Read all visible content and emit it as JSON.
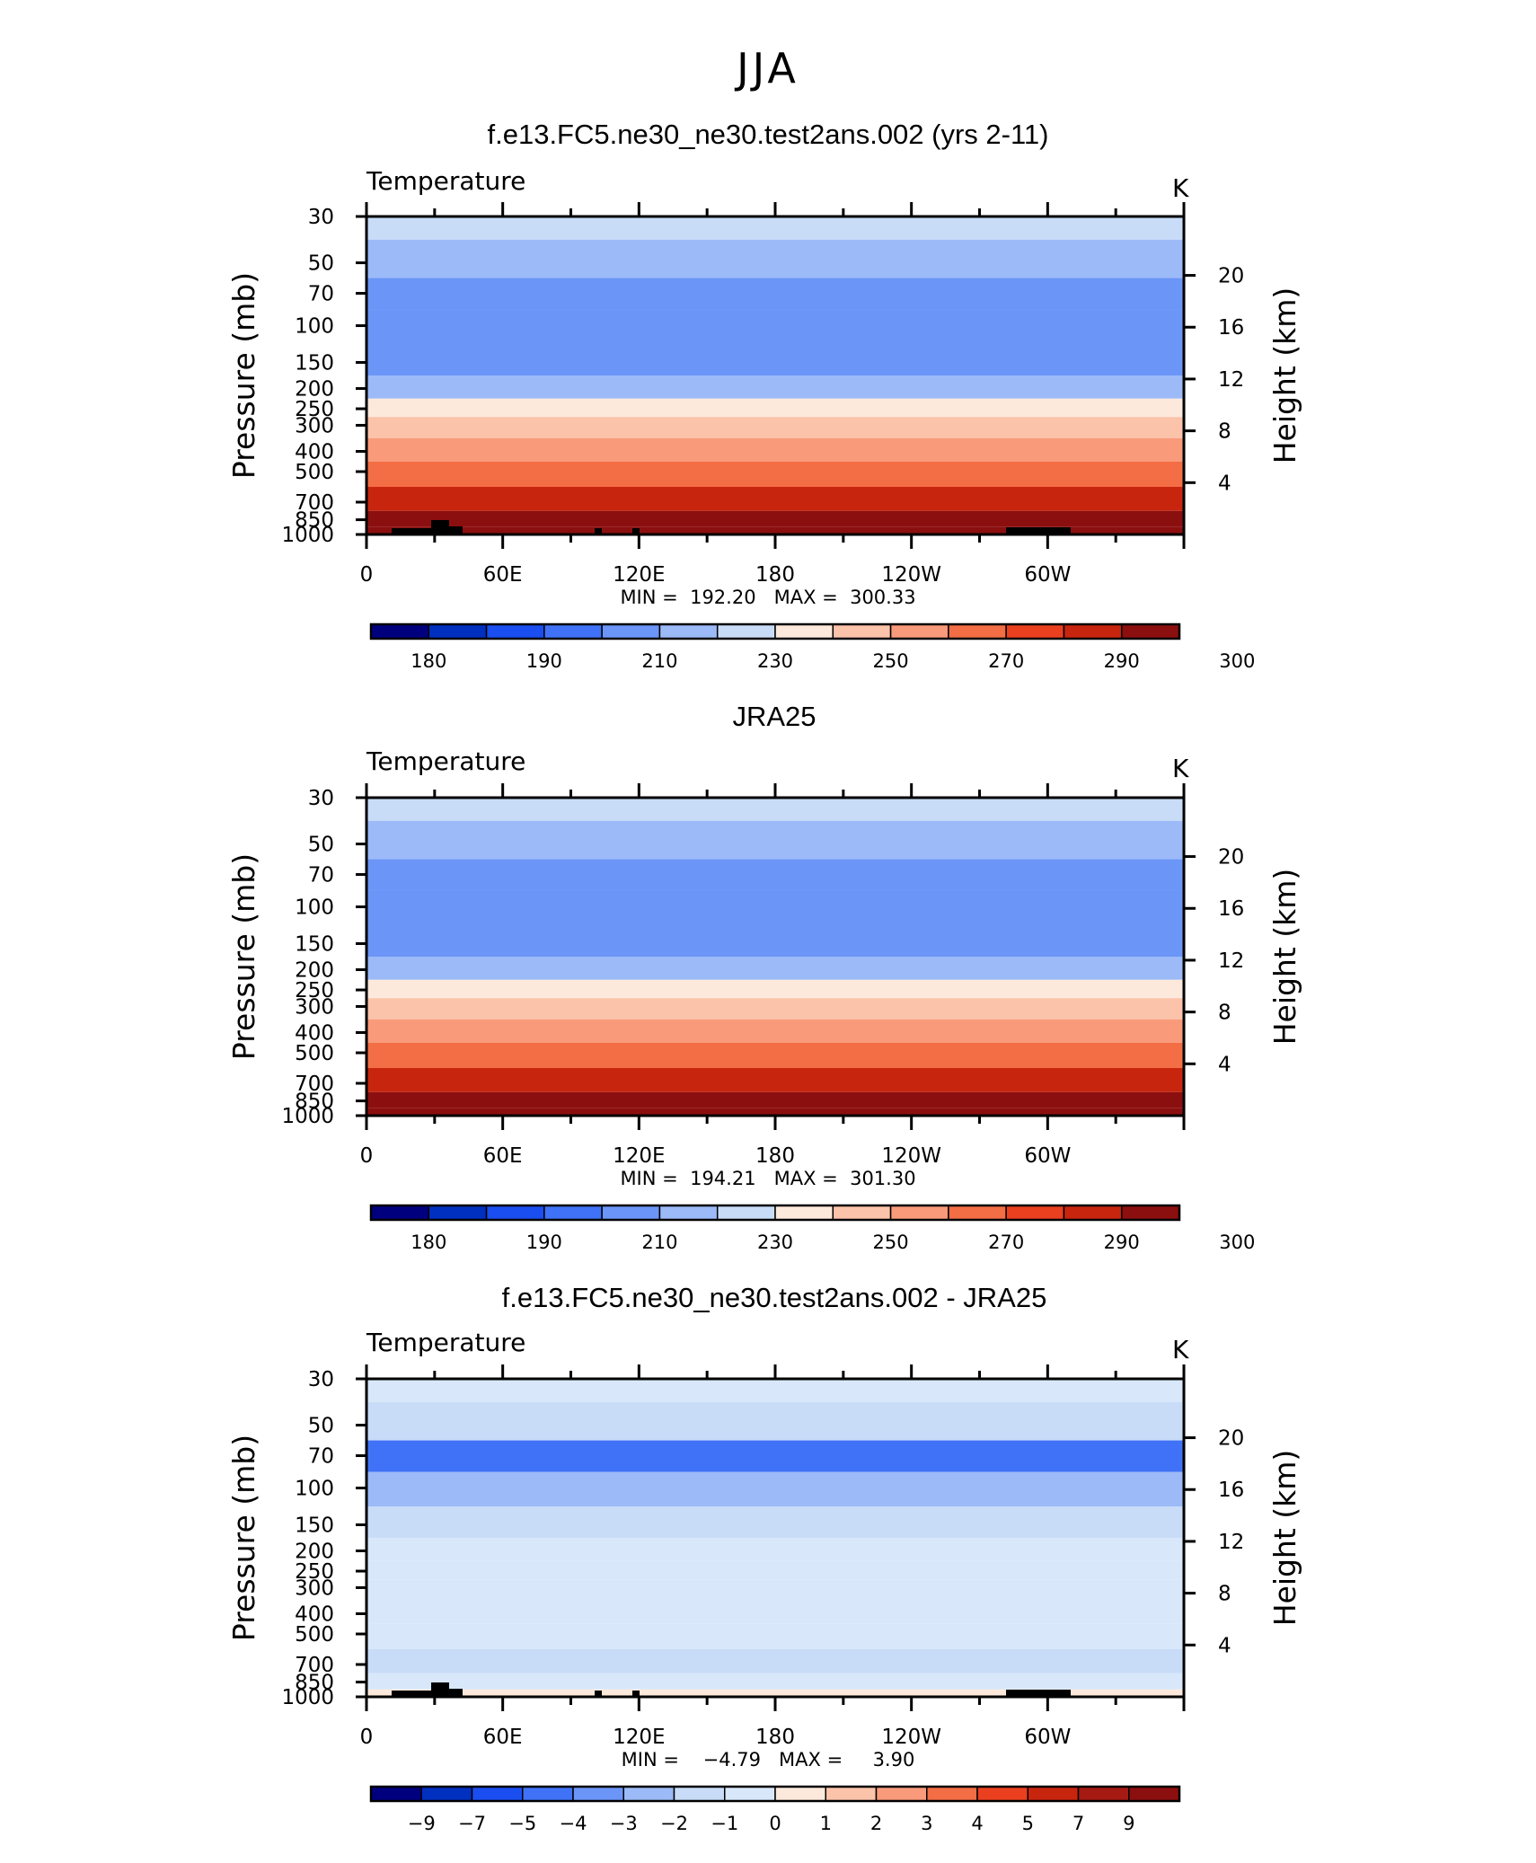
{
  "figure": {
    "title": "JJA"
  },
  "chart_data": [
    {
      "type": "heatmap",
      "title": "f.e13.FC5.ne30_ne30.test2ans.002 (yrs 2-11)",
      "left_label": "Temperature",
      "units": "K",
      "ylabel": "Pressure  (mb)",
      "ylabel_right": "Height  (km)",
      "x_ticks": [
        "0",
        "60E",
        "120E",
        "180",
        "120W",
        "60W"
      ],
      "y_ticks": [
        "30",
        "50",
        "70",
        "100",
        "150",
        "200",
        "250",
        "300",
        "400",
        "500",
        "700",
        "850",
        "1000"
      ],
      "y_ticks_right": [
        "20",
        "16",
        "12",
        "8",
        "4"
      ],
      "minmax_text": "MIN =  192.20   MAX =  300.33",
      "min": 192.2,
      "max": 300.33,
      "colorbar": {
        "labels": [
          "180",
          "190",
          "210",
          "230",
          "250",
          "270",
          "290",
          "300"
        ],
        "colors": [
          "#00007f",
          "#0030c0",
          "#1a4ef0",
          "#3f72f6",
          "#6b95f7",
          "#9bbaf7",
          "#c8dcf8",
          "#fde9dc",
          "#fbc3a9",
          "#f99a7a",
          "#f36d45",
          "#ea4020",
          "#c8250f",
          "#8c0f0f"
        ]
      },
      "levels": [
        {
          "p": "30",
          "value": 220
        },
        {
          "p": "50",
          "value": 213
        },
        {
          "p": "70",
          "value": 207
        },
        {
          "p": "100",
          "value": 200
        },
        {
          "p": "150",
          "value": 205
        },
        {
          "p": "200",
          "value": 218
        },
        {
          "p": "250",
          "value": 230
        },
        {
          "p": "300",
          "value": 240
        },
        {
          "p": "400",
          "value": 255
        },
        {
          "p": "500",
          "value": 264
        },
        {
          "p": "700",
          "value": 280
        },
        {
          "p": "850",
          "value": 290
        },
        {
          "p": "1000",
          "value": 298
        }
      ]
    },
    {
      "type": "heatmap",
      "title": "JRA25",
      "left_label": "Temperature",
      "units": "K",
      "ylabel": "Pressure  (mb)",
      "ylabel_right": "Height  (km)",
      "x_ticks": [
        "0",
        "60E",
        "120E",
        "180",
        "120W",
        "60W"
      ],
      "y_ticks": [
        "30",
        "50",
        "70",
        "100",
        "150",
        "200",
        "250",
        "300",
        "400",
        "500",
        "700",
        "850",
        "1000"
      ],
      "y_ticks_right": [
        "20",
        "16",
        "12",
        "8",
        "4"
      ],
      "minmax_text": "MIN =  194.21   MAX =  301.30",
      "min": 194.21,
      "max": 301.3,
      "colorbar": {
        "labels": [
          "180",
          "190",
          "210",
          "230",
          "250",
          "270",
          "290",
          "300"
        ],
        "colors": [
          "#00007f",
          "#0030c0",
          "#1a4ef0",
          "#3f72f6",
          "#6b95f7",
          "#9bbaf7",
          "#c8dcf8",
          "#fde9dc",
          "#fbc3a9",
          "#f99a7a",
          "#f36d45",
          "#ea4020",
          "#c8250f",
          "#8c0f0f"
        ]
      },
      "levels": [
        {
          "p": "30",
          "value": 222
        },
        {
          "p": "50",
          "value": 214
        },
        {
          "p": "70",
          "value": 208
        },
        {
          "p": "100",
          "value": 201
        },
        {
          "p": "150",
          "value": 206
        },
        {
          "p": "200",
          "value": 219
        },
        {
          "p": "250",
          "value": 231
        },
        {
          "p": "300",
          "value": 241
        },
        {
          "p": "400",
          "value": 256
        },
        {
          "p": "500",
          "value": 265
        },
        {
          "p": "700",
          "value": 281
        },
        {
          "p": "850",
          "value": 291
        },
        {
          "p": "1000",
          "value": 299
        }
      ]
    },
    {
      "type": "heatmap",
      "title": "f.e13.FC5.ne30_ne30.test2ans.002 - JRA25",
      "left_label": "Temperature",
      "units": "K",
      "ylabel": "Pressure  (mb)",
      "ylabel_right": "Height  (km)",
      "x_ticks": [
        "0",
        "60E",
        "120E",
        "180",
        "120W",
        "60W"
      ],
      "y_ticks": [
        "30",
        "50",
        "70",
        "100",
        "150",
        "200",
        "250",
        "300",
        "400",
        "500",
        "700",
        "850",
        "1000"
      ],
      "y_ticks_right": [
        "20",
        "16",
        "12",
        "8",
        "4"
      ],
      "minmax_text": "MIN =    −4.79   MAX =     3.90",
      "min": -4.79,
      "max": 3.9,
      "colorbar": {
        "labels": [
          "−9",
          "−7",
          "−5",
          "−4",
          "−3",
          "−2",
          "−1",
          "0",
          "1",
          "2",
          "3",
          "4",
          "5",
          "7",
          "9"
        ],
        "colors": [
          "#00007f",
          "#0030c0",
          "#1a4ef0",
          "#3f72f6",
          "#6b95f7",
          "#9bbaf7",
          "#c8dcf8",
          "#d8e8fa",
          "#fde9dc",
          "#fbc3a9",
          "#f99a7a",
          "#f36d45",
          "#ea4020",
          "#c8250f",
          "#a51a12",
          "#8c0f0f"
        ]
      },
      "levels": [
        {
          "p": "30",
          "value": -0.5
        },
        {
          "p": "50",
          "value": -2
        },
        {
          "p": "70",
          "value": -4.5
        },
        {
          "p": "100",
          "value": -2.5
        },
        {
          "p": "150",
          "value": -1.5
        },
        {
          "p": "200",
          "value": -0.5
        },
        {
          "p": "250",
          "value": -0.5
        },
        {
          "p": "300",
          "value": -0.5
        },
        {
          "p": "400",
          "value": -0.5
        },
        {
          "p": "500",
          "value": -0.5
        },
        {
          "p": "700",
          "value": -1.2
        },
        {
          "p": "850",
          "value": -0.5
        },
        {
          "p": "1000",
          "value": 0.5
        }
      ]
    }
  ]
}
